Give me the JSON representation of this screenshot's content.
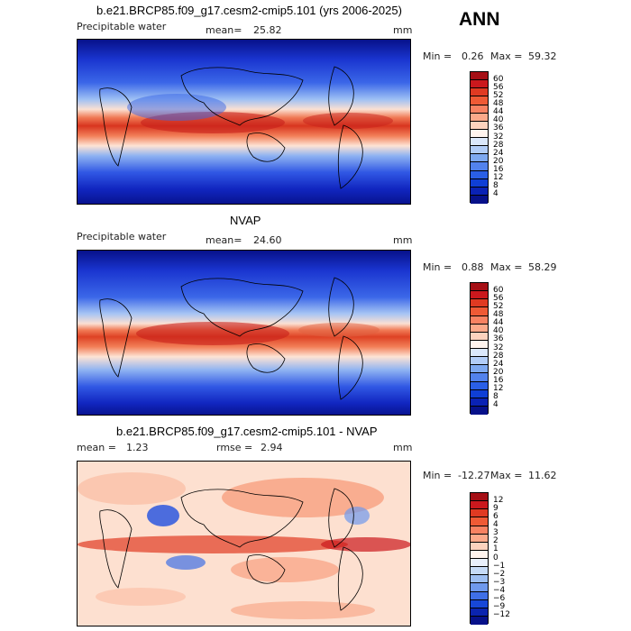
{
  "panels": [
    {
      "title": "b.e21.BRCP85.f09_g17.cesm2-cmip5.101 (yrs 2006-2025)",
      "left_label": "Precipitable water",
      "mid_label": "mean=",
      "mid_value": "25.82",
      "right_label": "mm",
      "min_label": "Min =",
      "min_value": "0.26",
      "max_label": "Max =",
      "max_value": "59.32",
      "colorbar": {
        "levels": [
          "60",
          "56",
          "52",
          "48",
          "44",
          "40",
          "36",
          "32",
          "28",
          "24",
          "20",
          "16",
          "12",
          "8",
          "4"
        ],
        "colors": [
          "#a50f15",
          "#cb181d",
          "#e03a22",
          "#ef5a35",
          "#f88262",
          "#fca98a",
          "#fdd3be",
          "#fff4ee",
          "#dbe8fb",
          "#b2cdf7",
          "#7ea9f0",
          "#5282ec",
          "#2a5fe6",
          "#0f3fd6",
          "#0a22b5",
          "#07118a"
        ]
      }
    },
    {
      "title": "NVAP",
      "left_label": "Precipitable water",
      "mid_label": "mean=",
      "mid_value": "24.60",
      "right_label": "mm",
      "min_label": "Min =",
      "min_value": "0.88",
      "max_label": "Max =",
      "max_value": "58.29",
      "colorbar": {
        "levels": [
          "60",
          "56",
          "52",
          "48",
          "44",
          "40",
          "36",
          "32",
          "28",
          "24",
          "20",
          "16",
          "12",
          "8",
          "4"
        ],
        "colors": [
          "#a50f15",
          "#cb181d",
          "#e03a22",
          "#ef5a35",
          "#f88262",
          "#fca98a",
          "#fdd3be",
          "#fff4ee",
          "#dbe8fb",
          "#b2cdf7",
          "#7ea9f0",
          "#5282ec",
          "#2a5fe6",
          "#0f3fd6",
          "#0a22b5",
          "#07118a"
        ]
      }
    },
    {
      "title": "b.e21.BRCP85.f09_g17.cesm2-cmip5.101 - NVAP",
      "left_label": "mean =",
      "left_value": "1.23",
      "mid_label": "rmse =",
      "mid_value": "2.94",
      "right_label": "mm",
      "min_label": "Min =",
      "min_value": "-12.27",
      "max_label": "Max =",
      "max_value": "11.62",
      "colorbar": {
        "levels": [
          "12",
          "9",
          "6",
          "4",
          "3",
          "2",
          "1",
          "0",
          "−1",
          "−2",
          "−3",
          "−4",
          "−6",
          "−9",
          "−12"
        ],
        "colors": [
          "#a50f15",
          "#cb181d",
          "#e03a22",
          "#ef5a35",
          "#f88262",
          "#fca98a",
          "#fdd3be",
          "#fff4ee",
          "#e9f0fc",
          "#c6dbf7",
          "#9ebff2",
          "#6f99ed",
          "#3f6fe6",
          "#1747d8",
          "#0b24b0",
          "#07118a"
        ]
      }
    }
  ],
  "season": "ANN"
}
